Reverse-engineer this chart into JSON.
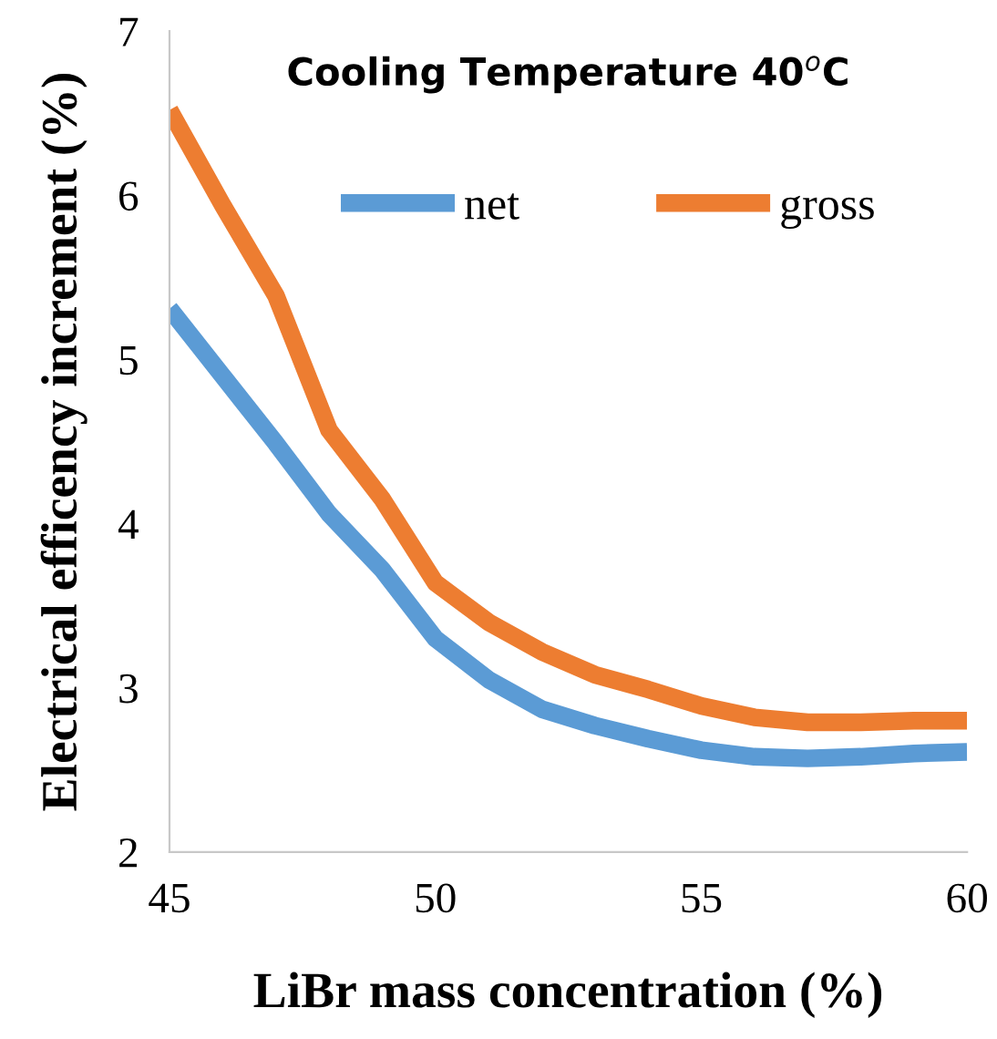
{
  "chart_data": {
    "type": "line",
    "title": "Cooling Temperature 40$^{o}$C",
    "xlabel": "LiBr mass concentration (%)",
    "ylabel": "Electrical efficency increment (%)",
    "x": [
      45,
      46,
      47,
      48,
      49,
      50,
      51,
      52,
      53,
      54,
      55,
      56,
      57,
      58,
      59,
      60
    ],
    "series": [
      {
        "name": "net",
        "color": "#5b9bd5",
        "values": [
          5.31,
          4.9,
          4.49,
          4.06,
          3.72,
          3.3,
          3.05,
          2.87,
          2.77,
          2.69,
          2.62,
          2.58,
          2.57,
          2.58,
          2.6,
          2.61
        ]
      },
      {
        "name": "gross",
        "color": "#ed7d31",
        "values": [
          6.52,
          5.94,
          5.39,
          4.57,
          4.15,
          3.64,
          3.4,
          3.22,
          3.08,
          2.99,
          2.89,
          2.82,
          2.79,
          2.79,
          2.8,
          2.8
        ]
      }
    ],
    "xlim": [
      45,
      60
    ],
    "xticks": [
      45,
      50,
      55,
      60
    ],
    "ylim": [
      2,
      7
    ],
    "yticks": [
      2,
      3,
      4,
      5,
      6,
      7
    ],
    "grid": false,
    "legend": "top",
    "marker": "none",
    "line_style": "solid"
  }
}
